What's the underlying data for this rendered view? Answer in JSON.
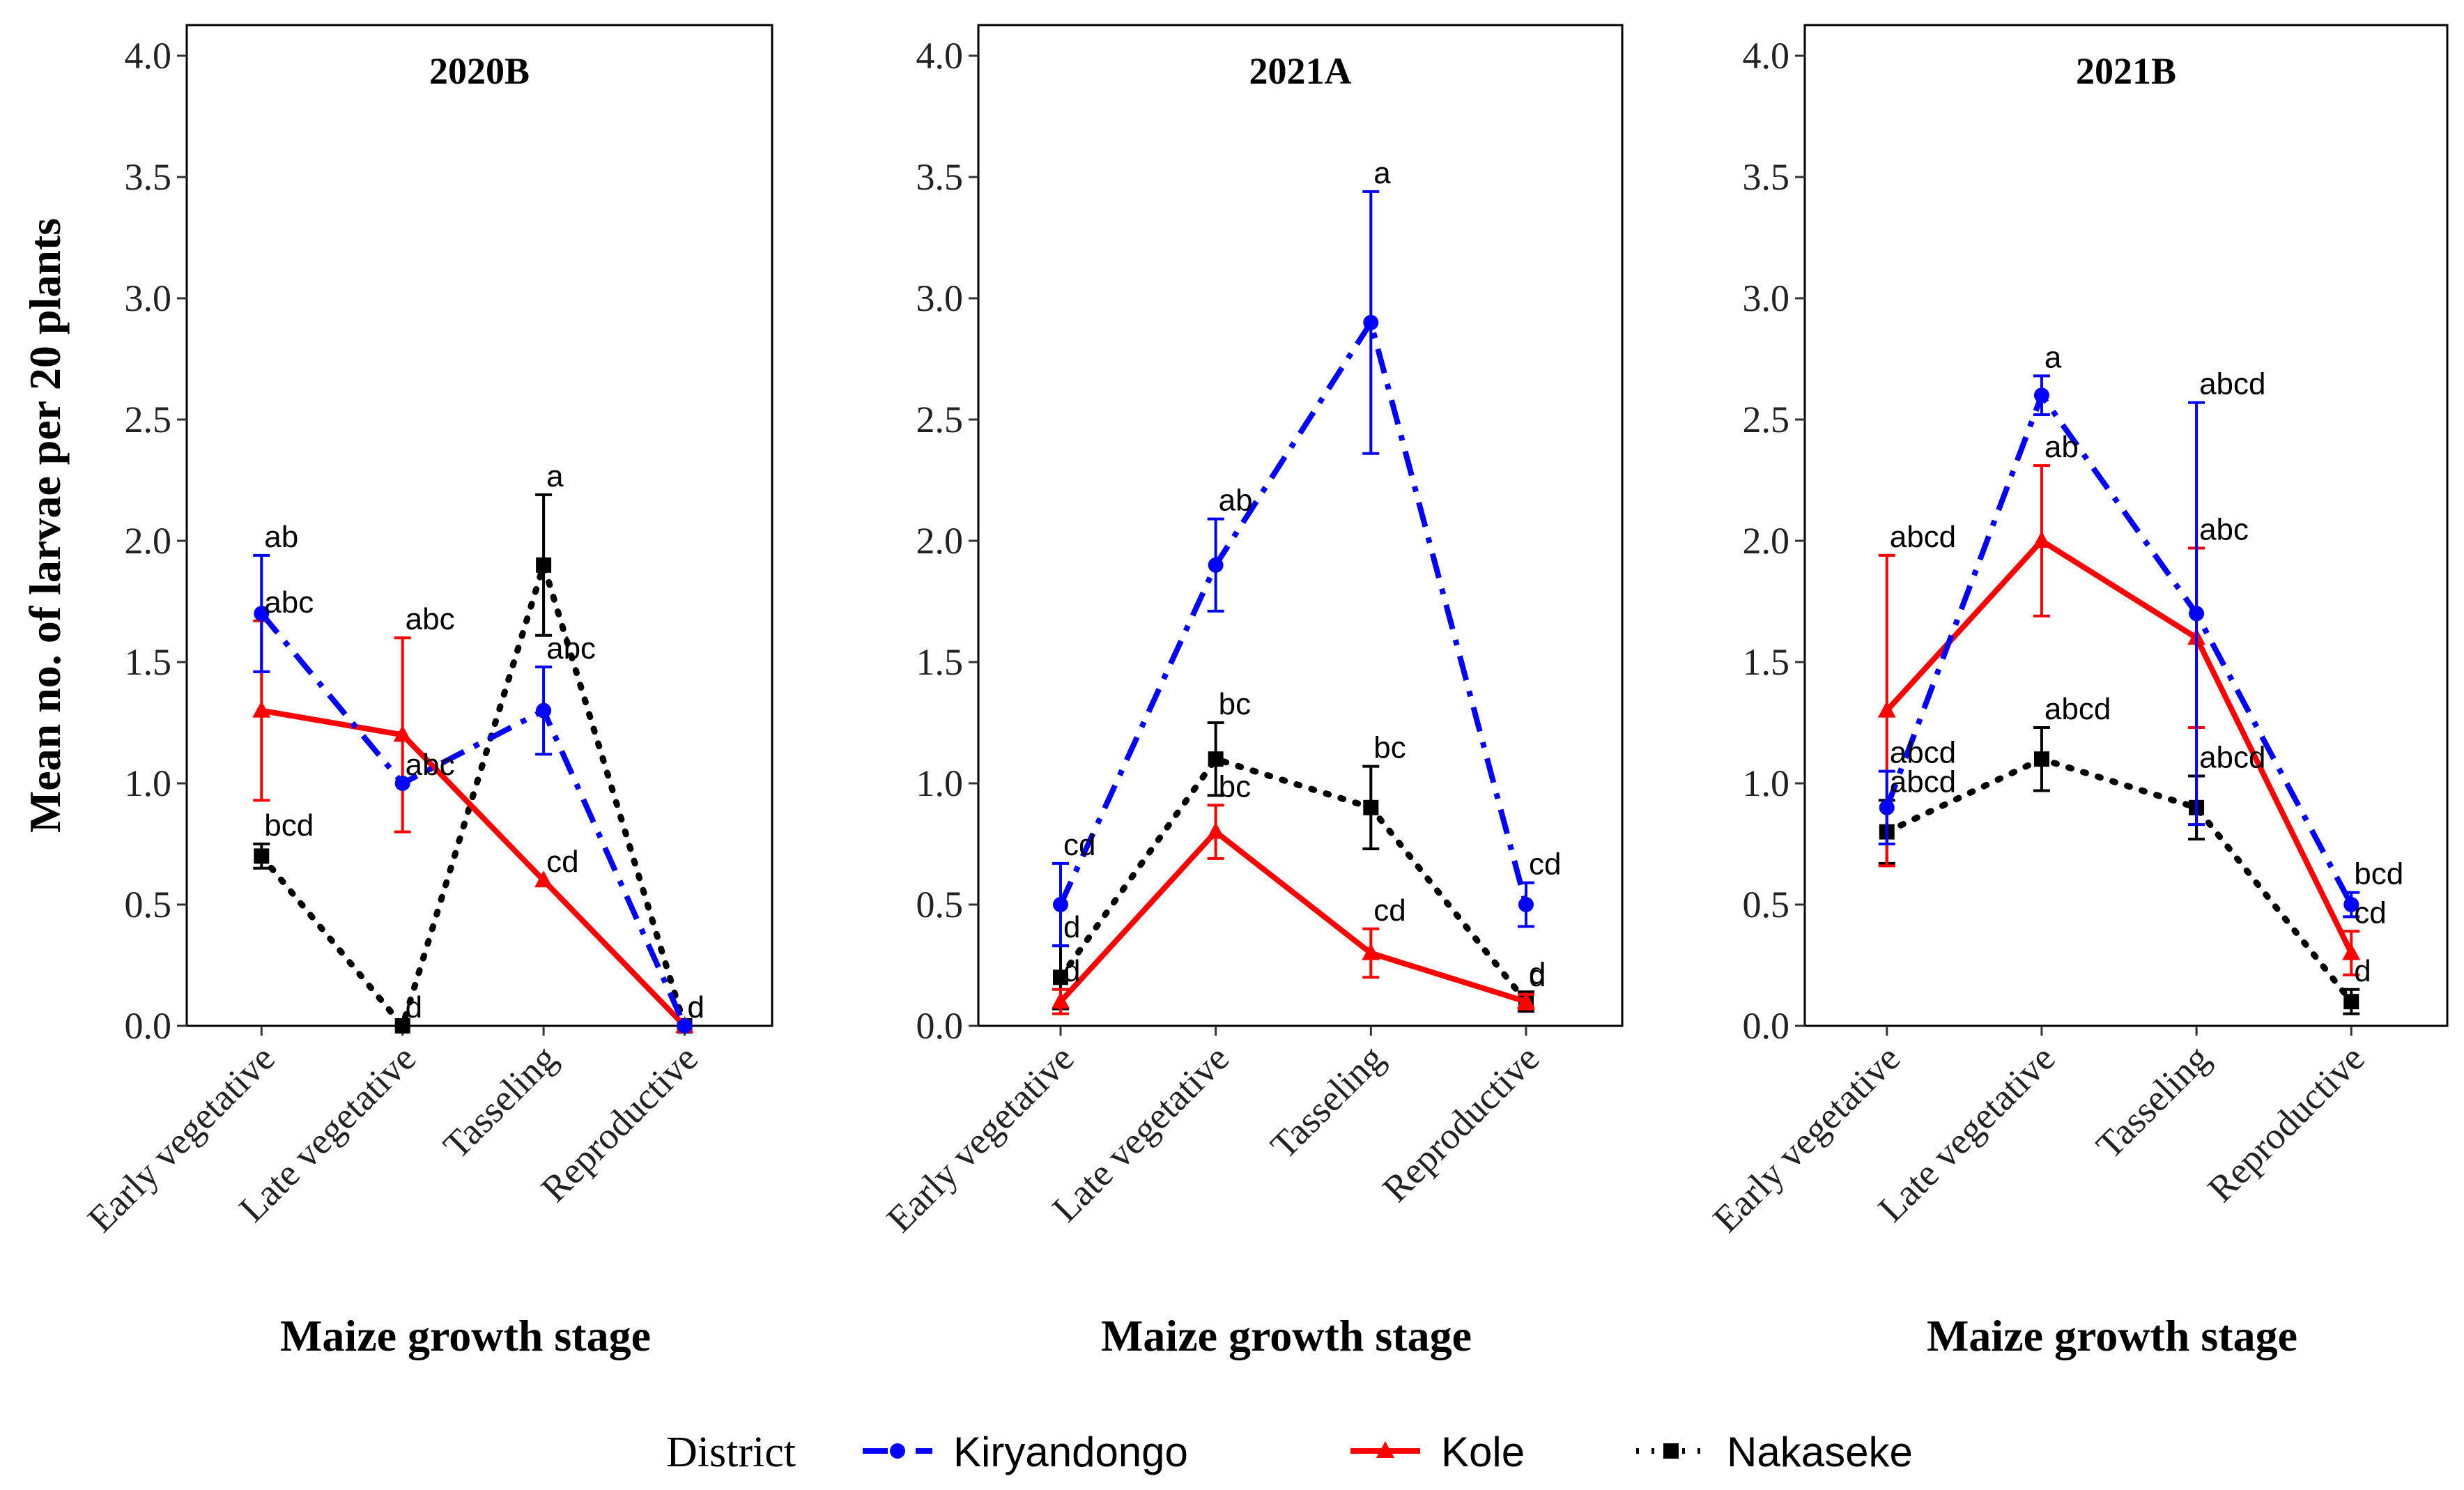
{
  "chart_data": {
    "type": "line",
    "ylabel": "Mean no. of larvae per 20 plants",
    "xlabel": "Maize growth stage",
    "ylim": [
      0,
      4
    ],
    "yticks": [
      "0.0",
      "0.5",
      "1.0",
      "1.5",
      "2.0",
      "2.5",
      "3.0",
      "3.5",
      "4.0"
    ],
    "ytick_values": [
      0,
      0.5,
      1,
      1.5,
      2,
      2.5,
      3,
      3.5,
      4
    ],
    "categories": [
      "Early vegetative",
      "Late vegetative",
      "Tasseling",
      "Reproductive"
    ],
    "grid": false,
    "legend": {
      "title": "District",
      "position": "bottom",
      "entries": [
        {
          "name": "Kiryandongo",
          "color": "#0000ff",
          "marker": "circle",
          "linestyle": "dashdot"
        },
        {
          "name": "Kole",
          "color": "#ff0000",
          "marker": "triangle",
          "linestyle": "solid"
        },
        {
          "name": "Nakaseke",
          "color": "#000000",
          "marker": "square",
          "linestyle": "dotted"
        }
      ]
    },
    "panels": [
      {
        "title": "2020B",
        "series": [
          {
            "name": "Kiryandongo",
            "values": [
              1.7,
              1.0,
              1.3,
              0.0
            ],
            "errors": [
              0.24,
              0.0,
              0.18,
              0.0
            ],
            "labels": [
              "ab",
              "abc",
              "abc",
              "d"
            ]
          },
          {
            "name": "Kole",
            "values": [
              1.3,
              1.2,
              0.6,
              0.0
            ],
            "errors": [
              0.37,
              0.4,
              0.0,
              0.0
            ],
            "labels": [
              "abc",
              "abc",
              "cd",
              "d"
            ]
          },
          {
            "name": "Nakaseke",
            "values": [
              0.7,
              0.0,
              1.9,
              0.0
            ],
            "errors": [
              0.05,
              0.0,
              0.29,
              0.0
            ],
            "labels": [
              "bcd",
              "d",
              "a",
              "d"
            ]
          }
        ]
      },
      {
        "title": "2021A",
        "series": [
          {
            "name": "Kiryandongo",
            "values": [
              0.5,
              1.9,
              2.9,
              0.5
            ],
            "errors": [
              0.17,
              0.19,
              0.54,
              0.09
            ],
            "labels": [
              "cd",
              "ab",
              "a",
              "cd"
            ]
          },
          {
            "name": "Kole",
            "values": [
              0.1,
              0.8,
              0.3,
              0.1
            ],
            "errors": [
              0.05,
              0.11,
              0.1,
              0.03
            ],
            "labels": [
              "d",
              "bc",
              "cd",
              "d"
            ]
          },
          {
            "name": "Nakaseke",
            "values": [
              0.2,
              1.1,
              0.9,
              0.1
            ],
            "errors": [
              0.13,
              0.15,
              0.17,
              0.04
            ],
            "labels": [
              "d",
              "bc",
              "bc",
              "d"
            ]
          }
        ]
      },
      {
        "title": "2021B",
        "series": [
          {
            "name": "Kiryandongo",
            "values": [
              0.9,
              2.6,
              1.7,
              0.5
            ],
            "errors": [
              0.15,
              0.08,
              0.87,
              0.05
            ],
            "labels": [
              "abcd",
              "a",
              "abcd",
              "bcd"
            ]
          },
          {
            "name": "Kole",
            "values": [
              1.3,
              2.0,
              1.6,
              0.3
            ],
            "errors": [
              0.64,
              0.31,
              0.37,
              0.09
            ],
            "labels": [
              "abcd",
              "ab",
              "abc",
              "cd"
            ]
          },
          {
            "name": "Nakaseke",
            "values": [
              0.8,
              1.1,
              0.9,
              0.1
            ],
            "errors": [
              0.13,
              0.13,
              0.13,
              0.05
            ],
            "labels": [
              "abcd",
              "abcd",
              "abcd",
              "d"
            ]
          }
        ]
      }
    ]
  }
}
